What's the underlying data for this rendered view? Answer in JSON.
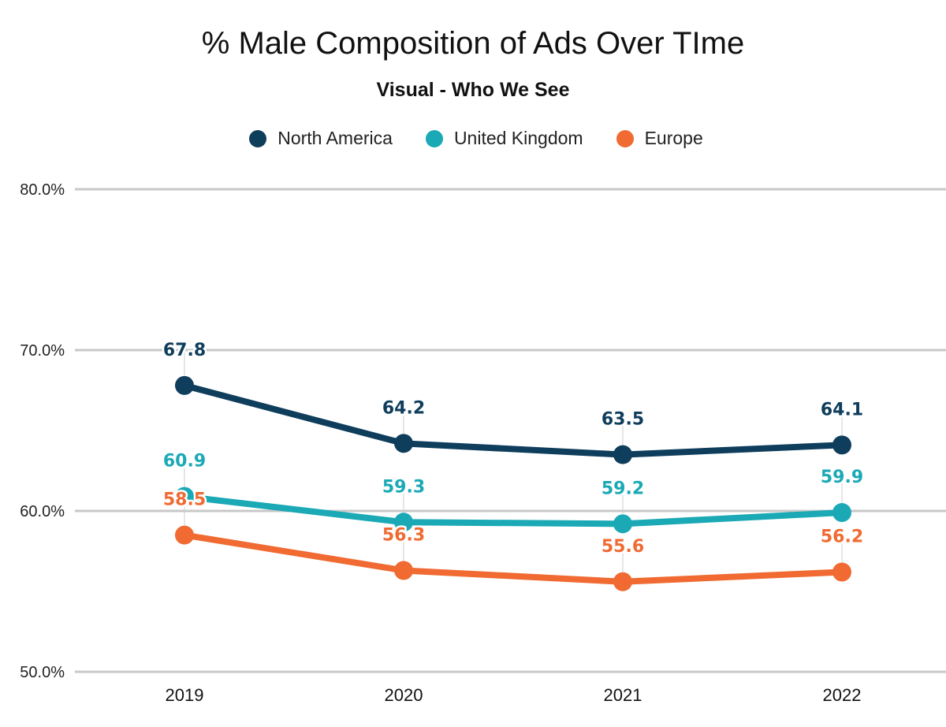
{
  "chart_data": {
    "type": "line",
    "title": "% Male Composition of Ads Over TIme",
    "subtitle": "Visual - Who We See",
    "xlabel": "",
    "ylabel": "",
    "categories": [
      "2019",
      "2020",
      "2021",
      "2022"
    ],
    "ylim": [
      50,
      80
    ],
    "yticks": [
      80,
      70,
      60,
      50
    ],
    "ytick_labels": [
      "80.0%",
      "70.0%",
      "60.0%",
      "50.0%"
    ],
    "grid": true,
    "legend_position": "top-center",
    "series": [
      {
        "name": "North America",
        "color": "#0f3d5c",
        "values": [
          67.8,
          64.2,
          63.5,
          64.1
        ],
        "labels": [
          "67.8",
          "64.2",
          "63.5",
          "64.1"
        ]
      },
      {
        "name": "United Kingdom",
        "color": "#1aa9b5",
        "values": [
          60.9,
          59.3,
          59.2,
          59.9
        ],
        "labels": [
          "60.9",
          "59.3",
          "59.2",
          "59.9"
        ]
      },
      {
        "name": "Europe",
        "color": "#f06a32",
        "values": [
          58.5,
          56.3,
          55.6,
          56.2
        ],
        "labels": [
          "58.5",
          "56.3",
          "55.6",
          "56.2"
        ]
      }
    ]
  }
}
